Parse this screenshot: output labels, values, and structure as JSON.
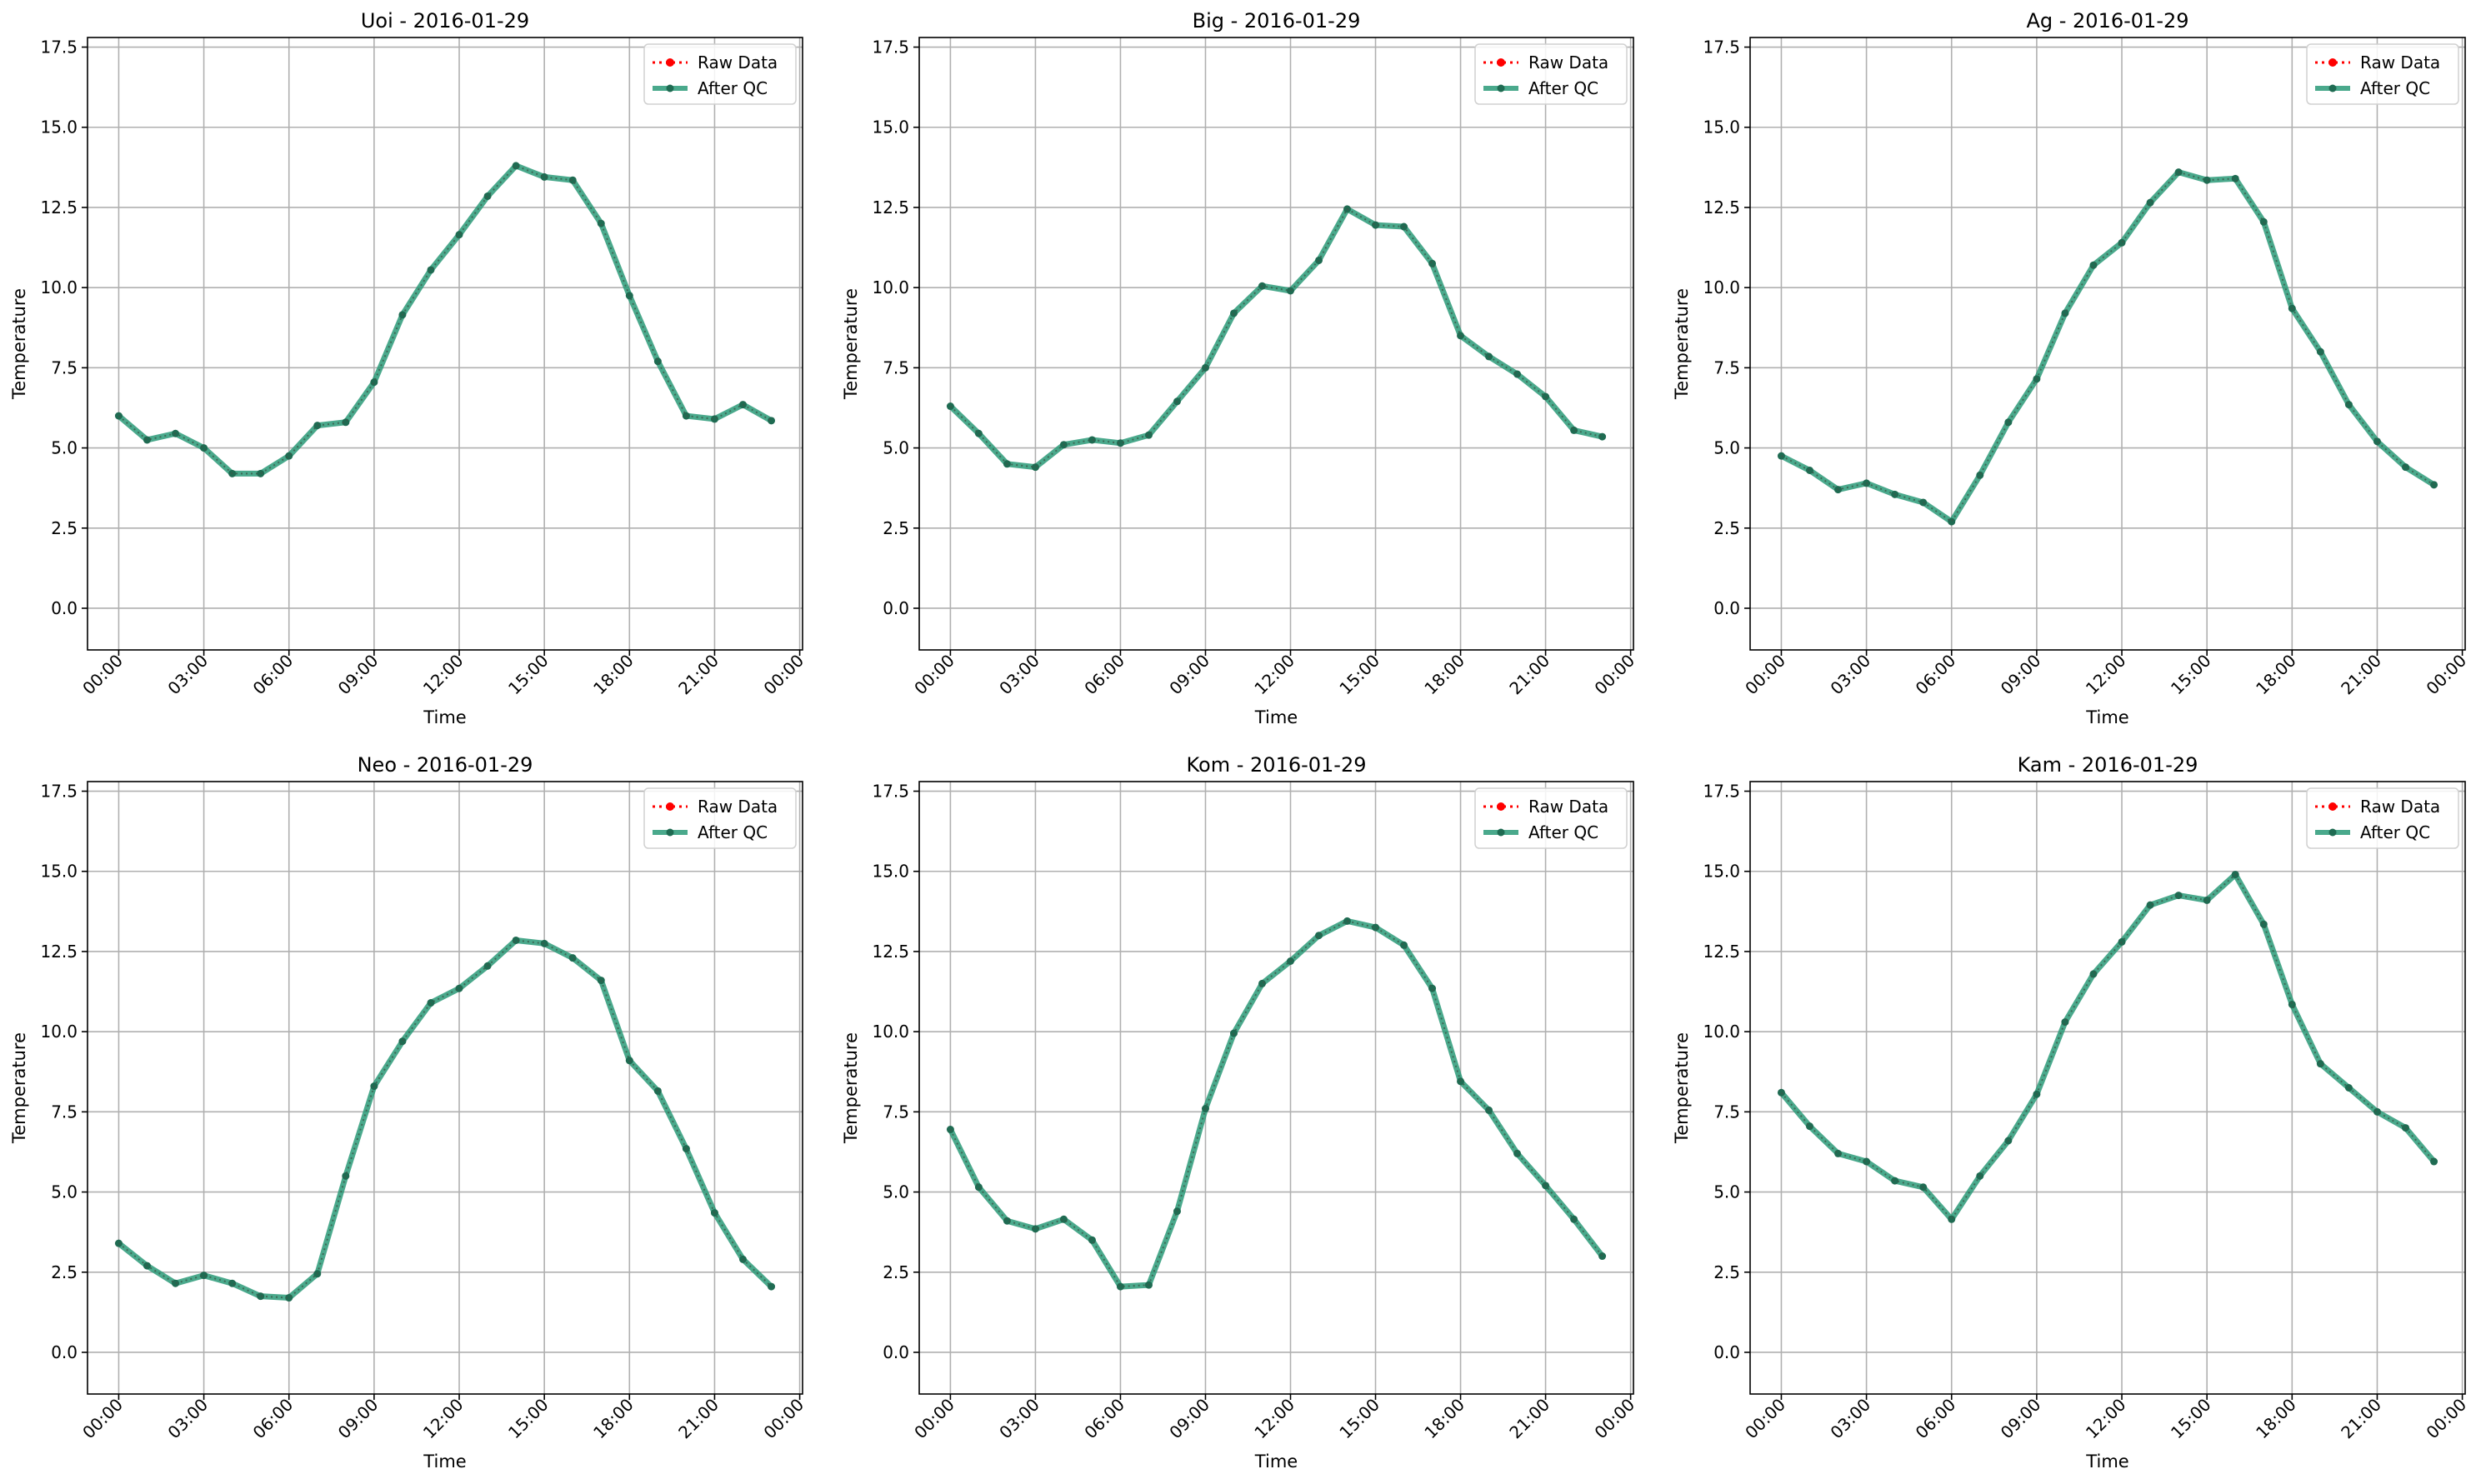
{
  "chart_data": [
    {
      "type": "line",
      "title": "Uoi - 2016-01-29",
      "xlabel": "Time",
      "ylabel": "Temperature",
      "ylim": [
        -1.3,
        17.8
      ],
      "yticks": [
        "0.0",
        "2.5",
        "5.0",
        "7.5",
        "10.0",
        "12.5",
        "15.0",
        "17.5"
      ],
      "xticks": [
        "00:00",
        "03:00",
        "06:00",
        "09:00",
        "12:00",
        "15:00",
        "18:00",
        "21:00",
        "00:00"
      ],
      "legend": "top-right",
      "grid": true,
      "x": [
        0,
        1,
        2,
        3,
        4,
        5,
        6,
        7,
        8,
        9,
        10,
        11,
        12,
        13,
        14,
        15,
        16,
        17,
        18,
        19,
        20,
        21,
        22,
        23
      ],
      "series": [
        {
          "name": "Raw Data",
          "color": "#ff0000",
          "style": "dotted",
          "values": [
            6.0,
            5.25,
            5.45,
            5.0,
            4.2,
            4.2,
            4.75,
            5.7,
            5.8,
            7.05,
            9.15,
            10.55,
            11.65,
            12.85,
            13.8,
            13.45,
            13.35,
            12.0,
            9.75,
            7.7,
            6.0,
            5.9,
            6.35,
            5.85
          ]
        },
        {
          "name": "After QC",
          "color": "#2a9a78",
          "style": "solid",
          "values": [
            6.0,
            5.25,
            5.45,
            5.0,
            4.2,
            4.2,
            4.75,
            5.7,
            5.8,
            7.05,
            9.15,
            10.55,
            11.65,
            12.85,
            13.8,
            13.45,
            13.35,
            12.0,
            9.75,
            7.7,
            6.0,
            5.9,
            6.35,
            5.85
          ]
        }
      ]
    },
    {
      "type": "line",
      "title": "Big - 2016-01-29",
      "xlabel": "Time",
      "ylabel": "Temperature",
      "ylim": [
        -1.3,
        17.8
      ],
      "yticks": [
        "0.0",
        "2.5",
        "5.0",
        "7.5",
        "10.0",
        "12.5",
        "15.0",
        "17.5"
      ],
      "xticks": [
        "00:00",
        "03:00",
        "06:00",
        "09:00",
        "12:00",
        "15:00",
        "18:00",
        "21:00",
        "00:00"
      ],
      "legend": "top-right",
      "grid": true,
      "x": [
        0,
        1,
        2,
        3,
        4,
        5,
        6,
        7,
        8,
        9,
        10,
        11,
        12,
        13,
        14,
        15,
        16,
        17,
        18,
        19,
        20,
        21,
        22,
        23
      ],
      "series": [
        {
          "name": "Raw Data",
          "color": "#ff0000",
          "style": "dotted",
          "values": [
            6.3,
            5.45,
            4.5,
            4.4,
            5.1,
            5.25,
            5.15,
            5.4,
            6.45,
            7.5,
            9.2,
            10.05,
            9.9,
            10.85,
            12.45,
            11.95,
            11.9,
            10.75,
            8.5,
            7.85,
            7.3,
            6.6,
            5.55,
            5.35
          ]
        },
        {
          "name": "After QC",
          "color": "#2a9a78",
          "style": "solid",
          "values": [
            6.3,
            5.45,
            4.5,
            4.4,
            5.1,
            5.25,
            5.15,
            5.4,
            6.45,
            7.5,
            9.2,
            10.05,
            9.9,
            10.85,
            12.45,
            11.95,
            11.9,
            10.75,
            8.5,
            7.85,
            7.3,
            6.6,
            5.55,
            5.35
          ]
        }
      ]
    },
    {
      "type": "line",
      "title": "Ag - 2016-01-29",
      "xlabel": "Time",
      "ylabel": "Temperature",
      "ylim": [
        -1.3,
        17.8
      ],
      "yticks": [
        "0.0",
        "2.5",
        "5.0",
        "7.5",
        "10.0",
        "12.5",
        "15.0",
        "17.5"
      ],
      "xticks": [
        "00:00",
        "03:00",
        "06:00",
        "09:00",
        "12:00",
        "15:00",
        "18:00",
        "21:00",
        "00:00"
      ],
      "legend": "top-right",
      "grid": true,
      "x": [
        0,
        1,
        2,
        3,
        4,
        5,
        6,
        7,
        8,
        9,
        10,
        11,
        12,
        13,
        14,
        15,
        16,
        17,
        18,
        19,
        20,
        21,
        22,
        23
      ],
      "series": [
        {
          "name": "Raw Data",
          "color": "#ff0000",
          "style": "dotted",
          "values": [
            4.75,
            4.3,
            3.7,
            3.9,
            3.55,
            3.3,
            2.7,
            4.15,
            5.8,
            7.15,
            9.2,
            10.7,
            11.4,
            12.65,
            13.6,
            13.35,
            13.4,
            12.05,
            9.35,
            8.0,
            6.35,
            5.2,
            4.4,
            3.85
          ]
        },
        {
          "name": "After QC",
          "color": "#2a9a78",
          "style": "solid",
          "values": [
            4.75,
            4.3,
            3.7,
            3.9,
            3.55,
            3.3,
            2.7,
            4.15,
            5.8,
            7.15,
            9.2,
            10.7,
            11.4,
            12.65,
            13.6,
            13.35,
            13.4,
            12.05,
            9.35,
            8.0,
            6.35,
            5.2,
            4.4,
            3.85
          ]
        }
      ]
    },
    {
      "type": "line",
      "title": "Neo - 2016-01-29",
      "xlabel": "Time",
      "ylabel": "Temperature",
      "ylim": [
        -1.3,
        17.8
      ],
      "yticks": [
        "0.0",
        "2.5",
        "5.0",
        "7.5",
        "10.0",
        "12.5",
        "15.0",
        "17.5"
      ],
      "xticks": [
        "00:00",
        "03:00",
        "06:00",
        "09:00",
        "12:00",
        "15:00",
        "18:00",
        "21:00",
        "00:00"
      ],
      "legend": "top-right",
      "grid": true,
      "x": [
        0,
        1,
        2,
        3,
        4,
        5,
        6,
        7,
        8,
        9,
        10,
        11,
        12,
        13,
        14,
        15,
        16,
        17,
        18,
        19,
        20,
        21,
        22,
        23
      ],
      "series": [
        {
          "name": "Raw Data",
          "color": "#ff0000",
          "style": "dotted",
          "values": [
            3.4,
            2.7,
            2.15,
            2.4,
            2.15,
            1.75,
            1.7,
            2.45,
            5.5,
            8.3,
            9.7,
            10.9,
            11.35,
            12.05,
            12.85,
            12.75,
            12.3,
            11.6,
            9.1,
            8.15,
            6.35,
            4.35,
            2.9,
            2.05
          ]
        },
        {
          "name": "After QC",
          "color": "#2a9a78",
          "style": "solid",
          "values": [
            3.4,
            2.7,
            2.15,
            2.4,
            2.15,
            1.75,
            1.7,
            2.45,
            5.5,
            8.3,
            9.7,
            10.9,
            11.35,
            12.05,
            12.85,
            12.75,
            12.3,
            11.6,
            9.1,
            8.15,
            6.35,
            4.35,
            2.9,
            2.05
          ]
        }
      ]
    },
    {
      "type": "line",
      "title": "Kom - 2016-01-29",
      "xlabel": "Time",
      "ylabel": "Temperature",
      "ylim": [
        -1.3,
        17.8
      ],
      "yticks": [
        "0.0",
        "2.5",
        "5.0",
        "7.5",
        "10.0",
        "12.5",
        "15.0",
        "17.5"
      ],
      "xticks": [
        "00:00",
        "03:00",
        "06:00",
        "09:00",
        "12:00",
        "15:00",
        "18:00",
        "21:00",
        "00:00"
      ],
      "legend": "top-right",
      "grid": true,
      "x": [
        0,
        1,
        2,
        3,
        4,
        5,
        6,
        7,
        8,
        9,
        10,
        11,
        12,
        13,
        14,
        15,
        16,
        17,
        18,
        19,
        20,
        21,
        22,
        23
      ],
      "series": [
        {
          "name": "Raw Data",
          "color": "#ff0000",
          "style": "dotted",
          "values": [
            6.95,
            5.15,
            4.1,
            3.85,
            4.15,
            3.5,
            2.05,
            2.1,
            4.4,
            7.6,
            9.95,
            11.5,
            12.2,
            13.0,
            13.45,
            13.25,
            12.7,
            11.35,
            8.45,
            7.55,
            6.2,
            5.2,
            4.15,
            3.0
          ]
        },
        {
          "name": "After QC",
          "color": "#2a9a78",
          "style": "solid",
          "values": [
            6.95,
            5.15,
            4.1,
            3.85,
            4.15,
            3.5,
            2.05,
            2.1,
            4.4,
            7.6,
            9.95,
            11.5,
            12.2,
            13.0,
            13.45,
            13.25,
            12.7,
            11.35,
            8.45,
            7.55,
            6.2,
            5.2,
            4.15,
            3.0
          ]
        }
      ]
    },
    {
      "type": "line",
      "title": "Kam - 2016-01-29",
      "xlabel": "Time",
      "ylabel": "Temperature",
      "ylim": [
        -1.3,
        17.8
      ],
      "yticks": [
        "0.0",
        "2.5",
        "5.0",
        "7.5",
        "10.0",
        "12.5",
        "15.0",
        "17.5"
      ],
      "xticks": [
        "00:00",
        "03:00",
        "06:00",
        "09:00",
        "12:00",
        "15:00",
        "18:00",
        "21:00",
        "00:00"
      ],
      "legend": "top-right",
      "grid": true,
      "x": [
        0,
        1,
        2,
        3,
        4,
        5,
        6,
        7,
        8,
        9,
        10,
        11,
        12,
        13,
        14,
        15,
        16,
        17,
        18,
        19,
        20,
        21,
        22,
        23
      ],
      "series": [
        {
          "name": "Raw Data",
          "color": "#ff0000",
          "style": "dotted",
          "values": [
            8.1,
            7.05,
            6.2,
            5.95,
            5.35,
            5.15,
            4.15,
            5.5,
            6.6,
            8.05,
            10.3,
            11.8,
            12.8,
            13.95,
            14.25,
            14.1,
            14.9,
            13.35,
            10.85,
            9.0,
            8.25,
            7.5,
            7.0,
            5.95
          ]
        },
        {
          "name": "After QC",
          "color": "#2a9a78",
          "style": "solid",
          "values": [
            8.1,
            7.05,
            6.2,
            5.95,
            5.35,
            5.15,
            4.15,
            5.5,
            6.6,
            8.05,
            10.3,
            11.8,
            12.8,
            13.95,
            14.25,
            14.1,
            14.9,
            13.35,
            10.85,
            9.0,
            8.25,
            7.5,
            7.0,
            5.95
          ]
        }
      ]
    }
  ]
}
